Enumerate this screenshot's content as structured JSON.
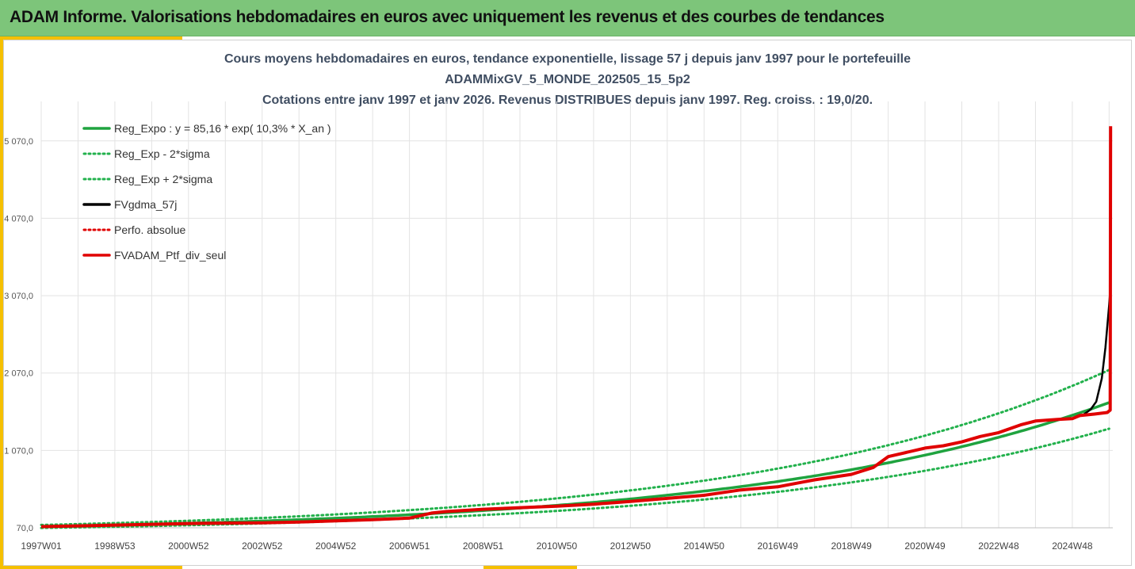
{
  "header": {
    "title": "ADAM Informe. Valorisations hebdomadaires en euros avec uniquement les revenus et des courbes de tendances"
  },
  "colors": {
    "header_bg": "#7dc57a",
    "accent": "#f5c000",
    "title_text": "#404e62",
    "trend_green": "#1fa33f",
    "dotted_green": "#22b14c",
    "black": "#000000",
    "red": "#e00000"
  },
  "chart_data": {
    "type": "line",
    "title_lines": [
      "Cours moyens hebdomadaires  en euros, tendance exponentielle, lissage 57 j depuis janv 1997 pour le portefeuille",
      "ADAMMixGV_5_MONDE_202505_15_5p2",
      "Cotations entre janv 1997 et janv 2026. Revenus DISTRIBUES depuis janv 1997. Reg. croiss. : 19,0/20."
    ],
    "x_tick_labels": [
      "1997W01",
      "1998W53",
      "2000W52",
      "2002W52",
      "2004W52",
      "2006W51",
      "2008W51",
      "2010W50",
      "2012W50",
      "2014W50",
      "2016W49",
      "2018W49",
      "2020W49",
      "2022W48",
      "2024W48"
    ],
    "y_tick_labels": [
      "70,0",
      "1 070,0",
      "2 070,0",
      "3 070,0",
      "4 070,0",
      "5 070,0"
    ],
    "y_ticks": [
      70,
      1070,
      2070,
      3070,
      4070,
      5070
    ],
    "ylim": [
      70,
      5580
    ],
    "xlim": [
      1997.0,
      2026.1
    ],
    "x_start_year": 1997.0,
    "x_tick_step_years": 1.0,
    "legend": [
      {
        "label": "Reg_Expo : y = 85,16 * exp( 10,3% *  X_an )",
        "style": "solid",
        "color": "#1fa33f"
      },
      {
        "label": "Reg_Exp - 2*sigma",
        "style": "dotted",
        "color": "#22b14c"
      },
      {
        "label": "Reg_Exp + 2*sigma",
        "style": "dotted",
        "color": "#22b14c"
      },
      {
        "label": "FVgdma_57j",
        "style": "solid",
        "color": "#000000"
      },
      {
        "label": "Perfo. absolue",
        "style": "dotted",
        "color": "#e00000"
      },
      {
        "label": "FVADAM_Ptf_div_seul",
        "style": "solid",
        "color": "#e00000"
      }
    ],
    "regression": {
      "a": 85.16,
      "b": 0.103,
      "minus_2sigma_factor": 0.8,
      "plus_2sigma_factor": 1.25
    },
    "series": [
      {
        "name": "FVADAM_Ptf_div_seul",
        "x": [
          1997.0,
          1998.0,
          1999.0,
          2000.0,
          2001.0,
          2002.0,
          2003.0,
          2004.0,
          2005.0,
          2006.0,
          2007.0,
          2007.6,
          2008.0,
          2009.0,
          2010.0,
          2011.0,
          2012.0,
          2013.0,
          2014.0,
          2015.0,
          2016.0,
          2017.0,
          2018.0,
          2019.0,
          2019.6,
          2020.0,
          2021.0,
          2021.5,
          2022.0,
          2022.5,
          2023.0,
          2023.6,
          2024.0,
          2024.6,
          2025.0,
          2025.2,
          2025.6,
          2025.95,
          2026.0,
          2026.03,
          2026.04
        ],
        "y": [
          85,
          95,
          105,
          115,
          125,
          130,
          135,
          145,
          160,
          175,
          195,
          260,
          280,
          310,
          330,
          350,
          375,
          410,
          450,
          490,
          560,
          600,
          690,
          760,
          850,
          990,
          1100,
          1130,
          1180,
          1250,
          1300,
          1400,
          1450,
          1470,
          1480,
          1520,
          1540,
          1560,
          1580,
          1590,
          5260
        ]
      },
      {
        "name": "FVgdma_57j",
        "x": [
          2025.0,
          2025.3,
          2025.5,
          2025.65,
          2025.8,
          2025.9,
          2026.0,
          2026.04
        ],
        "y": [
          1480,
          1530,
          1600,
          1700,
          2000,
          2400,
          2950,
          3200
        ]
      }
    ]
  }
}
